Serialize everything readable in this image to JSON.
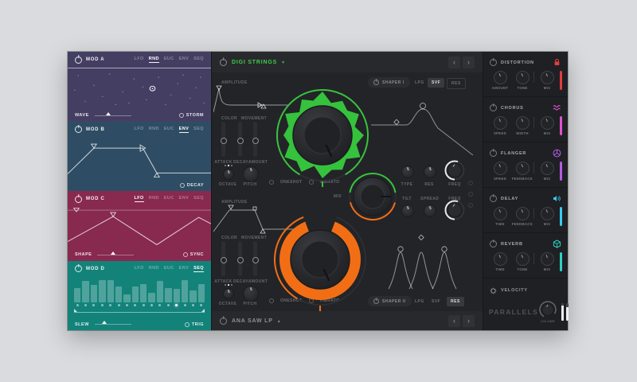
{
  "sidebar": {
    "mods": [
      {
        "name": "MOD A",
        "tabs": [
          "LFO",
          "RND",
          "EUC",
          "ENV",
          "SEQ"
        ],
        "active_tab": "RND",
        "footer_left": "WAVE",
        "footer_right": "STORM",
        "color": "#453e63"
      },
      {
        "name": "MOD B",
        "tabs": [
          "LFO",
          "RND",
          "EUC",
          "ENV",
          "SEQ"
        ],
        "active_tab": "ENV",
        "footer_left": "",
        "footer_right": "DECAY",
        "color": "#2e4d64"
      },
      {
        "name": "MOD C",
        "tabs": [
          "LFO",
          "RND",
          "EUC",
          "ENV",
          "SEQ"
        ],
        "active_tab": "LFO",
        "footer_left": "SHAPE",
        "footer_right": "SYNC",
        "color": "#88294f"
      },
      {
        "name": "MOD D",
        "tabs": [
          "LFO",
          "RND",
          "EUC",
          "ENV",
          "SEQ"
        ],
        "active_tab": "SEQ",
        "footer_left": "SLEW",
        "footer_right": "TRIG",
        "color": "#13837a",
        "steps": [
          55,
          80,
          65,
          90,
          90,
          60,
          30,
          60,
          70,
          35,
          80,
          55,
          50,
          95,
          45,
          70
        ],
        "active_step": 13
      }
    ]
  },
  "center": {
    "header": {
      "title": "DIGI STRINGS",
      "dropdown_arrow": "▾",
      "prev": "‹",
      "next": "›"
    },
    "footer": {
      "title": "ANA SAW LP",
      "dropdown_arrow": "▴",
      "prev": "‹",
      "next": "›"
    },
    "osc_top": {
      "amplitude": "AMPLITUDE",
      "color": "COLOR",
      "movement": "MOVEMENT",
      "sliders": [
        "ATTACK",
        "DECAY",
        "AMOUNT"
      ],
      "knobs": [
        "OCTAVE",
        "PITCH"
      ],
      "toggles": [
        "ONESHOT",
        "VIBRATO"
      ],
      "accent": "#38c33e"
    },
    "osc_bottom": {
      "amplitude": "AMPLITUDE",
      "color": "COLOR",
      "movement": "MOVEMENT",
      "sliders": [
        "ATTACK",
        "DECAY",
        "AMOUNT"
      ],
      "knobs": [
        "OCTAVE",
        "PITCH"
      ],
      "toggles": [
        "ONESHOT",
        "VIBRATO"
      ],
      "accent": "#f26e15"
    },
    "mix_label": "MIX",
    "filter": {
      "row1": [
        "TYPE",
        "RES",
        "FREQ"
      ],
      "row2": [
        "TILT",
        "SPREAD",
        "FREQ"
      ]
    },
    "shaper1": {
      "label": "SHAPER I",
      "buttons": [
        "LPG",
        "SVF",
        "RES"
      ],
      "active": "SVF"
    },
    "shaper2": {
      "label": "SHAPER II",
      "buttons": [
        "LPG",
        "SVF",
        "RES"
      ],
      "active": "RES"
    }
  },
  "fx": {
    "sections": [
      {
        "name": "DISTORTION",
        "icon": "lock-icon",
        "color": "#e23d3d",
        "knobs": [
          "AMOUNT",
          "TONE",
          "MIX"
        ]
      },
      {
        "name": "CHORUS",
        "icon": "waves-icon",
        "color": "#e14fd0",
        "knobs": [
          "SPEED",
          "WIDTH",
          "MIX"
        ]
      },
      {
        "name": "FLANGER",
        "icon": "peace-icon",
        "color": "#b45ae8",
        "knobs": [
          "SPEED",
          "FEEDBACK",
          "MIX"
        ]
      },
      {
        "name": "DELAY",
        "icon": "speaker-icon",
        "color": "#38c9f2",
        "knobs": [
          "TIME",
          "FEEDBACK",
          "MIX"
        ]
      },
      {
        "name": "REVERB",
        "icon": "cube-icon",
        "color": "#2bd3c3",
        "knobs": [
          "TIME",
          "TONE",
          "MIX"
        ]
      }
    ],
    "velocity": "VELOCITY",
    "brand": "PARALLELS",
    "volume_label": "VOLUME"
  }
}
